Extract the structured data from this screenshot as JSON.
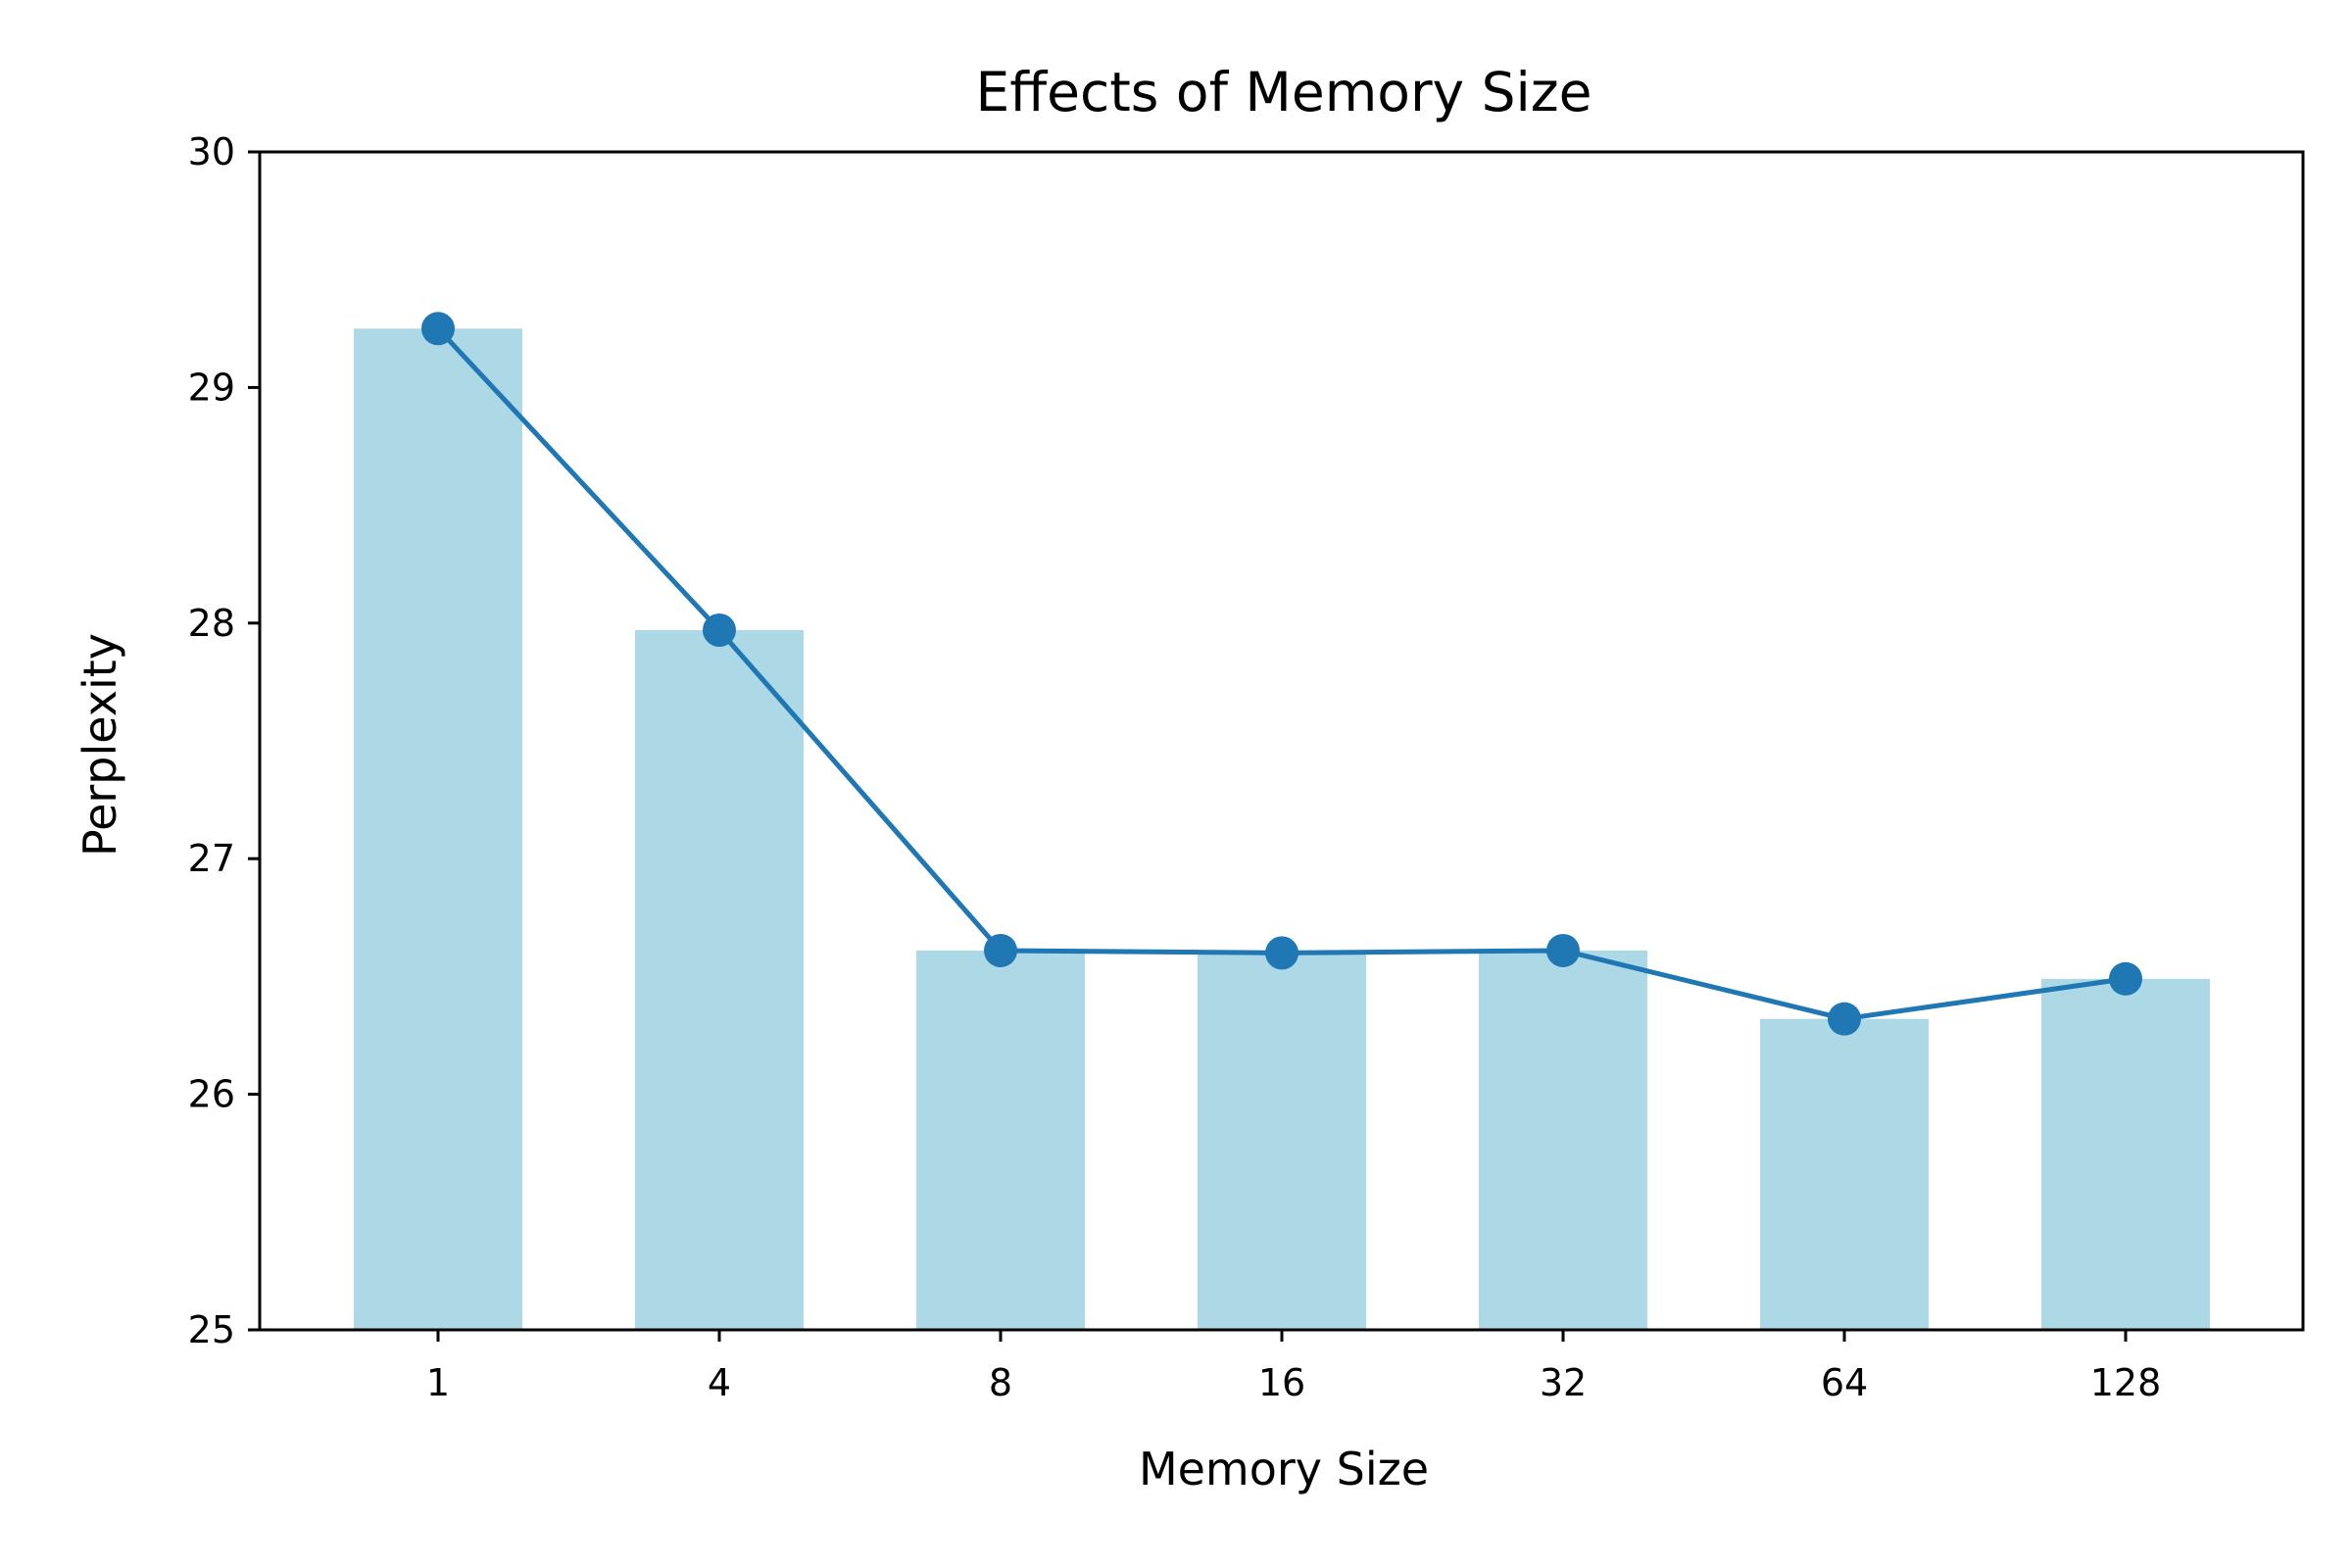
{
  "chart_data": {
    "type": "bar",
    "title": "Effects of Memory Size",
    "xlabel": "Memory Size",
    "ylabel": "Perplexity",
    "categories": [
      "1",
      "4",
      "8",
      "16",
      "32",
      "64",
      "128"
    ],
    "values": [
      29.25,
      27.97,
      26.61,
      26.6,
      26.61,
      26.32,
      26.49
    ],
    "ylim": [
      25,
      30
    ],
    "yticks": [
      "25",
      "26",
      "27",
      "28",
      "29",
      "30"
    ],
    "grid": false,
    "overlay": "line with circle markers through bar tops",
    "colors": {
      "bar": "#add8e6",
      "line": "#1f77b4"
    }
  }
}
